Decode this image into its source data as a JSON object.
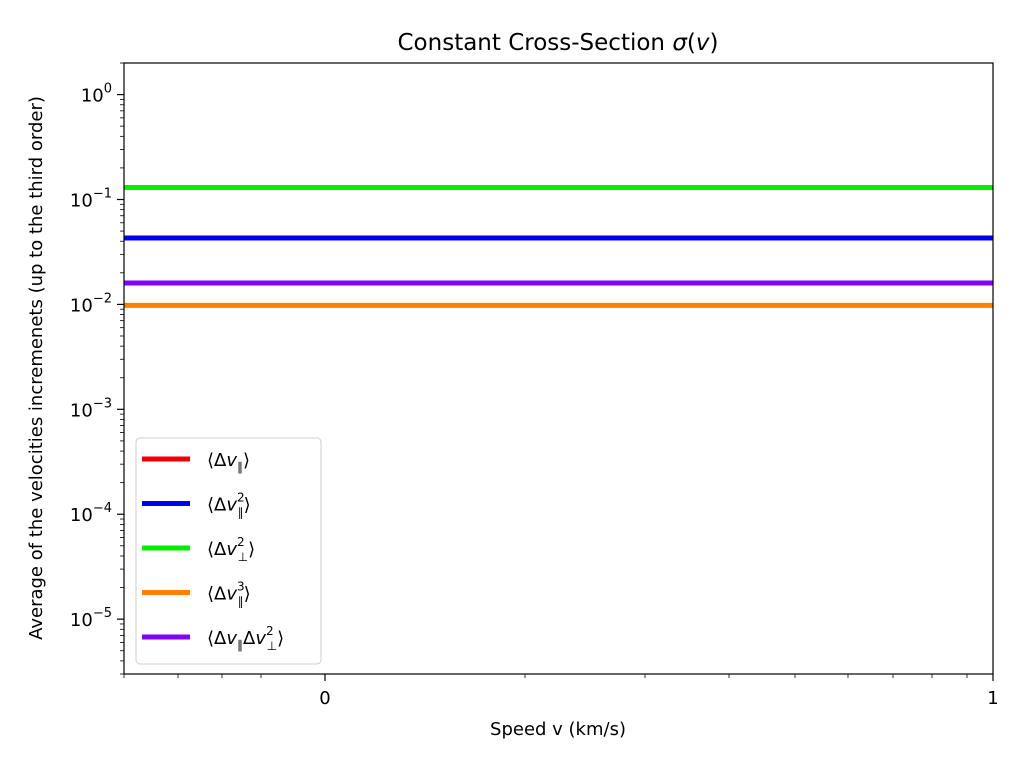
{
  "chart_data": {
    "type": "line",
    "title": "Constant Cross-Section σ(v)",
    "xlabel": "Speed v (km/s)",
    "ylabel": "Average of the velocities incremenets (up to the third order)",
    "yscale": "log",
    "ylim": [
      3e-06,
      2.0
    ],
    "x_ticks": [
      {
        "label": "0",
        "value": 0
      },
      {
        "label": "1",
        "value": 1
      }
    ],
    "y_ticks": [
      {
        "base": "10",
        "exp": "0",
        "value": 1
      },
      {
        "base": "10",
        "exp": "−1",
        "value": 0.1
      },
      {
        "base": "10",
        "exp": "−2",
        "value": 0.01
      },
      {
        "base": "10",
        "exp": "−3",
        "value": 0.001
      },
      {
        "base": "10",
        "exp": "−4",
        "value": 0.0001
      },
      {
        "base": "10",
        "exp": "−5",
        "value": 1e-05
      }
    ],
    "grid": false,
    "legend_position": "lower-left",
    "series": [
      {
        "name": "⟨Δv∥⟩",
        "color": "#ee0000",
        "value": null,
        "visible": false
      },
      {
        "name": "⟨Δv∥²⟩",
        "color": "#0000ee",
        "value": 0.043
      },
      {
        "name": "⟨Δv⊥²⟩",
        "color": "#00ee00",
        "value": 0.13
      },
      {
        "name": "⟨Δv∥³⟩",
        "color": "#ff7f00",
        "value": 0.0098
      },
      {
        "name": "⟨Δv∥Δv⊥²⟩",
        "color": "#7f00ff",
        "value": 0.016
      }
    ]
  }
}
